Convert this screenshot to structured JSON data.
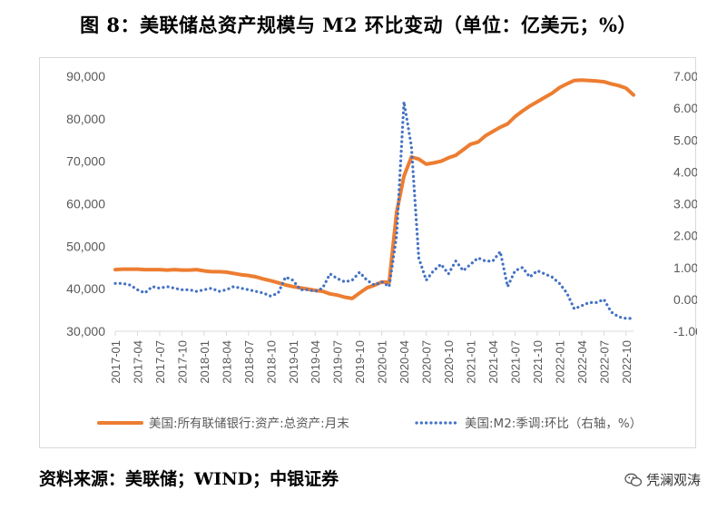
{
  "figure": {
    "title": "图 8：美联储总资产规模与 M2 环比变动（单位：亿美元；%）",
    "source": "资料来源：美联储；WIND；中银证券",
    "watermark": "凭澜观涛",
    "watermark_icon": "wechat-icon"
  },
  "chart_data": {
    "type": "line",
    "x": [
      "2017-01",
      "2017-02",
      "2017-03",
      "2017-04",
      "2017-05",
      "2017-06",
      "2017-07",
      "2017-08",
      "2017-09",
      "2017-10",
      "2017-11",
      "2017-12",
      "2018-01",
      "2018-02",
      "2018-03",
      "2018-04",
      "2018-05",
      "2018-06",
      "2018-07",
      "2018-08",
      "2018-09",
      "2018-10",
      "2018-11",
      "2018-12",
      "2019-01",
      "2019-02",
      "2019-03",
      "2019-04",
      "2019-05",
      "2019-06",
      "2019-07",
      "2019-08",
      "2019-09",
      "2019-10",
      "2019-11",
      "2019-12",
      "2020-01",
      "2020-02",
      "2020-03",
      "2020-04",
      "2020-05",
      "2020-06",
      "2020-07",
      "2020-08",
      "2020-09",
      "2020-10",
      "2020-11",
      "2020-12",
      "2021-01",
      "2021-02",
      "2021-03",
      "2021-04",
      "2021-05",
      "2021-06",
      "2021-07",
      "2021-08",
      "2021-09",
      "2021-10",
      "2021-11",
      "2021-12",
      "2022-01",
      "2022-02",
      "2022-03",
      "2022-04",
      "2022-05",
      "2022-06",
      "2022-07",
      "2022-08",
      "2022-09",
      "2022-10",
      "2022-11"
    ],
    "x_tick_labels": [
      "2017-01",
      "2017-04",
      "2017-07",
      "2017-10",
      "2018-01",
      "2018-04",
      "2018-07",
      "2018-10",
      "2019-01",
      "2019-04",
      "2019-07",
      "2019-10",
      "2020-01",
      "2020-04",
      "2020-07",
      "2020-10",
      "2021-01",
      "2021-04",
      "2021-07",
      "2021-10",
      "2022-01",
      "2022-04",
      "2022-07",
      "2022-10"
    ],
    "series": [
      {
        "name": "美国:所有联储银行:资产:总资产:月末",
        "axis": "left",
        "style": "solid",
        "color": "#ED7D31",
        "values": [
          44500,
          44600,
          44600,
          44600,
          44500,
          44500,
          44500,
          44400,
          44500,
          44400,
          44400,
          44500,
          44200,
          44000,
          44000,
          43900,
          43600,
          43300,
          43100,
          42800,
          42300,
          41900,
          41400,
          40900,
          40500,
          40200,
          39900,
          39600,
          39400,
          38800,
          38500,
          38000,
          37700,
          39000,
          40200,
          40800,
          41600,
          41500,
          58000,
          66500,
          71000,
          70500,
          69300,
          69600,
          70000,
          70800,
          71400,
          72700,
          74000,
          74500,
          76000,
          77000,
          78000,
          78800,
          80500,
          81800,
          83000,
          84000,
          85000,
          86000,
          87300,
          88200,
          89000,
          89100,
          89000,
          88900,
          88700,
          88200,
          87800,
          87200,
          85600
        ]
      },
      {
        "name": "美国:M2:季调:环比（右轴，%）",
        "axis": "right",
        "style": "dotted",
        "color": "#4472C4",
        "values": [
          0.5,
          0.5,
          0.45,
          0.3,
          0.2,
          0.4,
          0.35,
          0.4,
          0.35,
          0.3,
          0.3,
          0.25,
          0.3,
          0.35,
          0.25,
          0.3,
          0.4,
          0.35,
          0.3,
          0.25,
          0.2,
          0.1,
          0.2,
          0.7,
          0.6,
          0.3,
          0.3,
          0.25,
          0.35,
          0.8,
          0.65,
          0.55,
          0.6,
          0.85,
          0.6,
          0.45,
          0.55,
          0.4,
          2.0,
          6.2,
          4.8,
          1.3,
          0.6,
          0.9,
          1.1,
          0.8,
          1.2,
          0.9,
          1.1,
          1.3,
          1.2,
          1.2,
          1.5,
          0.4,
          0.9,
          1.0,
          0.7,
          0.9,
          0.8,
          0.7,
          0.5,
          0.2,
          -0.3,
          -0.2,
          -0.1,
          -0.1,
          0.0,
          -0.4,
          -0.55,
          -0.6,
          -0.6
        ]
      }
    ],
    "y_left": {
      "min": 30000,
      "max": 90000,
      "ticks": [
        "30,000",
        "40,000",
        "50,000",
        "60,000",
        "70,000",
        "80,000",
        "90,000"
      ]
    },
    "y_right": {
      "min": -1,
      "max": 7,
      "ticks": [
        "-1.00",
        "0.00",
        "1.00",
        "2.00",
        "3.00",
        "4.00",
        "5.00",
        "6.00",
        "7.00"
      ]
    },
    "legend_position": "bottom",
    "grid": false
  }
}
